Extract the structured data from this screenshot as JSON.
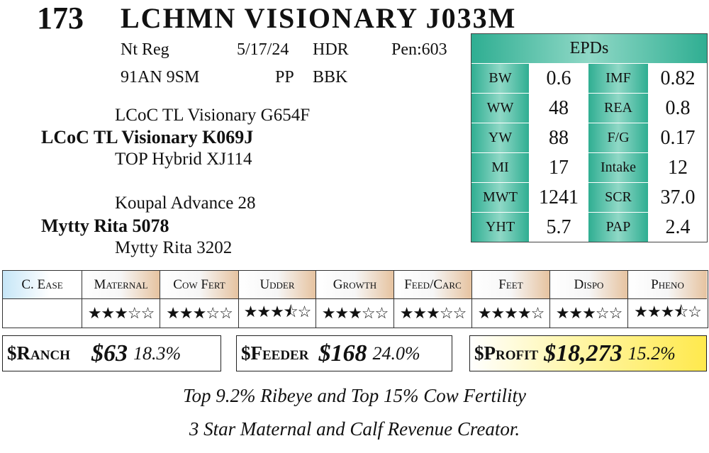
{
  "header": {
    "lot_number": "173",
    "animal_name": "LCHMN VISIONARY J033M"
  },
  "info": {
    "row1": {
      "reg": "Nt Reg",
      "dob": "5/17/24",
      "hdr": "HDR",
      "pen": "Pen:603"
    },
    "row2": {
      "tag": "91AN 9SM",
      "pp": "PP",
      "color": "BBK"
    }
  },
  "pedigree": {
    "sire_sire": "LCoC TL Visionary G654F",
    "sire": "LCoC TL Visionary K069J",
    "sire_dam": "TOP Hybrid XJ114",
    "dam_sire": "Koupal Advance 28",
    "dam": "Mytty Rita 5078",
    "dam_dam": "Mytty Rita 3202"
  },
  "epds": {
    "title": "EPDs",
    "rows": [
      {
        "l1": "BW",
        "v1": "0.6",
        "l2": "IMF",
        "v2": "0.82"
      },
      {
        "l1": "WW",
        "v1": "48",
        "l2": "REA",
        "v2": "0.8"
      },
      {
        "l1": "YW",
        "v1": "88",
        "l2": "F/G",
        "v2": "0.17"
      },
      {
        "l1": "MI",
        "v1": "17",
        "l2": "Intake",
        "v2": "12"
      },
      {
        "l1": "MWT",
        "v1": "1241",
        "l2": "SCR",
        "v2": "37.0"
      },
      {
        "l1": "YHT",
        "v1": "5.7",
        "l2": "PAP",
        "v2": "2.4"
      }
    ],
    "label_color": "#2fae92"
  },
  "ratings": {
    "headers": [
      "C. Ease",
      "Maternal",
      "Cow Fert",
      "Udder",
      "Growth",
      "Feed/Carc",
      "Feet",
      "Dispo",
      "Pheno"
    ],
    "stars": [
      "",
      "★★★☆☆",
      "★★★☆☆",
      "★★★⯪☆",
      "★★★☆☆",
      "★★★☆☆",
      "★★★★☆",
      "★★★☆☆",
      "★★★⯪☆"
    ],
    "star_scores": [
      null,
      3,
      3,
      3.5,
      3,
      3,
      4,
      3,
      3.5
    ]
  },
  "indexes": {
    "ranch": {
      "label": "$Ranch",
      "value": "$63",
      "pct": "18.3%"
    },
    "feeder": {
      "label": "$Feeder",
      "value": "$168",
      "pct": "24.0%"
    },
    "profit": {
      "label": "$Profit",
      "value": "$18,273",
      "pct": "15.2%",
      "highlight_color": "#ffe94d"
    }
  },
  "comments": {
    "line1": "Top 9.2% Ribeye and Top 15% Cow Fertility",
    "line2": "3 Star Maternal and Calf Revenue Creator."
  }
}
